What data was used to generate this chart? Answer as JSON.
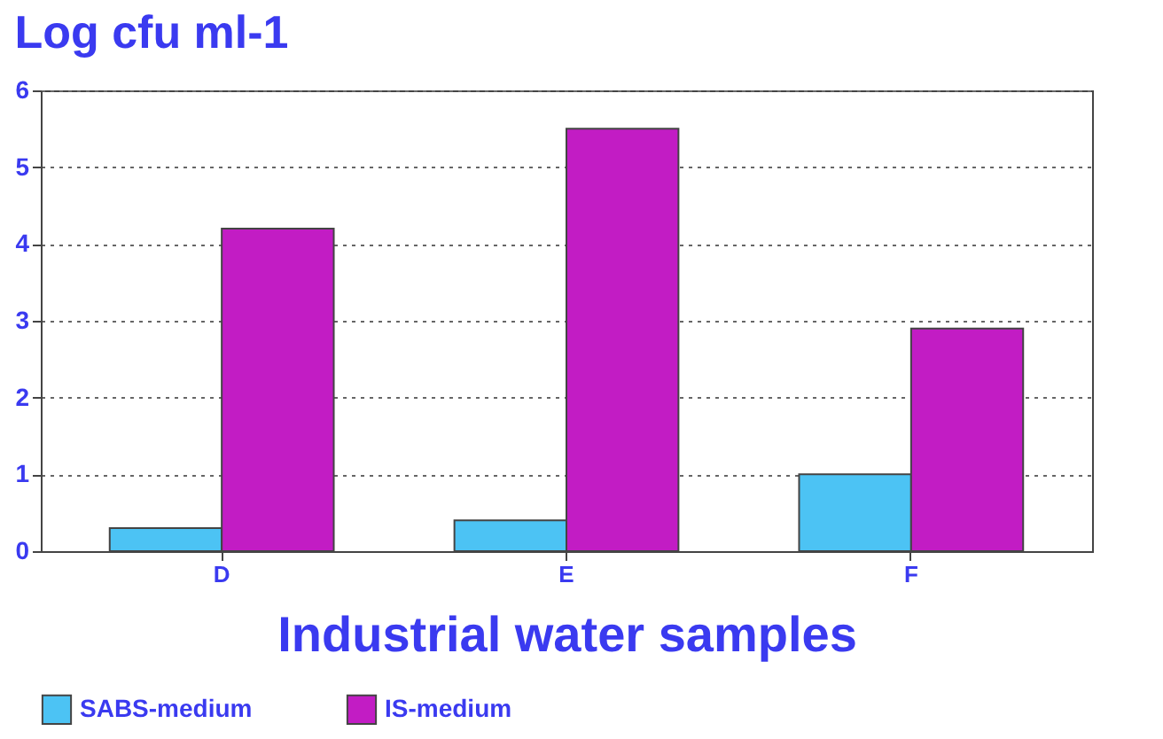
{
  "chart_data": {
    "type": "bar",
    "title": "Log cfu ml-1",
    "xlabel": "Industrial water samples",
    "categories": [
      "D",
      "E",
      "F"
    ],
    "series": [
      {
        "name": "SABS-medium",
        "color": "#4cc3f4",
        "values": [
          0.3,
          0.4,
          1.0
        ]
      },
      {
        "name": "IS-medium",
        "color": "#c21cc4",
        "values": [
          4.2,
          5.5,
          2.9
        ]
      }
    ],
    "ylim": [
      0,
      6
    ],
    "yticks": [
      0,
      1,
      2,
      3,
      4,
      5,
      6
    ],
    "grid": "y",
    "legend": "bottom"
  }
}
